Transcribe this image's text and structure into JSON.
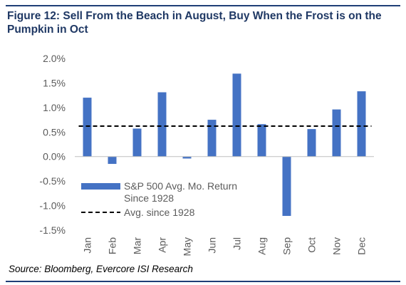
{
  "figure": {
    "title": "Figure 12: Sell From the Beach in August, Buy When the Frost is on the Pumpkin in Oct",
    "source": "Source: Bloomberg, Evercore ISI Research"
  },
  "colors": {
    "bar": "#4472c4",
    "title": "#1f3864",
    "rule": "#1f3f77",
    "line": "#000000",
    "text": "#5b5b5b"
  },
  "chart_data": {
    "type": "bar",
    "title": "Figure 12: Sell From the Beach in August, Buy When the Frost is on the Pumpkin in Oct",
    "categories": [
      "Jan",
      "Feb",
      "Mar",
      "Apr",
      "May",
      "Jun",
      "Jul",
      "Aug",
      "Sep",
      "Oct",
      "Nov",
      "Dec"
    ],
    "series": [
      {
        "name": "S&P 500 Avg. Mo. Return Since 1928",
        "values": [
          1.2,
          -0.15,
          0.57,
          1.31,
          -0.04,
          0.75,
          1.69,
          0.66,
          -1.21,
          0.56,
          0.96,
          1.33
        ]
      }
    ],
    "reference_line": {
      "name": "Avg. since 1928",
      "value": 0.62,
      "style": "dashed"
    },
    "legend": {
      "bar_label_lines": [
        "S&P 500 Avg. Mo. Return",
        "Since 1928"
      ],
      "line_label": "Avg. since 1928",
      "placement": "inside-left"
    },
    "xlabel": "",
    "ylabel": "",
    "ylim": [
      -1.5,
      2.0
    ],
    "yticks": [
      2.0,
      1.5,
      1.0,
      0.5,
      0.0,
      -0.5,
      -1.0,
      -1.5
    ],
    "ytick_labels": [
      "2.0%",
      "1.5%",
      "1.0%",
      "0.5%",
      "0.0%",
      "-0.5%",
      "-1.0%",
      "-1.5%"
    ],
    "grid": false
  }
}
